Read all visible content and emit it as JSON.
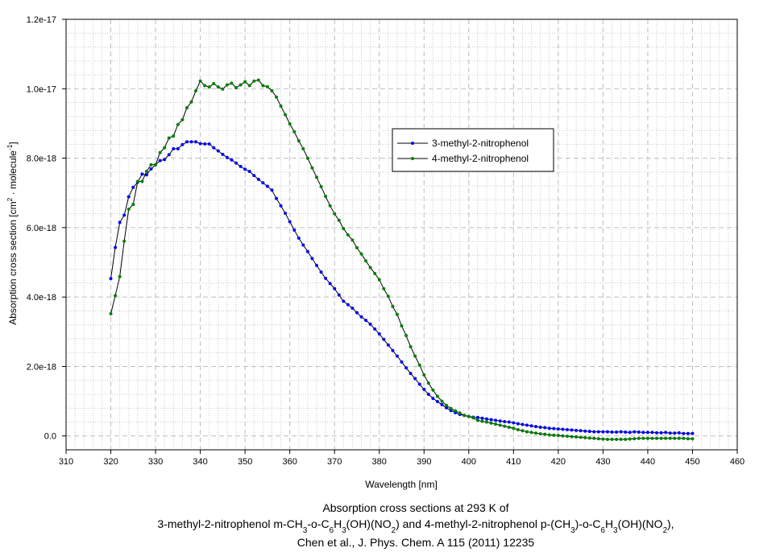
{
  "chart_data": {
    "type": "line",
    "title_lines": [
      "Absorption cross sections at 293 K of",
      "3-methyl-2-nitrophenol m-CH_{3}-o-C_{6}H_{3}(OH)(NO_{2}) and 4-methyl-2-nitrophenol p-(CH_{3})-o-C_{6}H_{3}(OH)(NO_{2}),",
      "Chen et al., J. Phys. Chem. A 115 (2011) 12235"
    ],
    "xlabel": "Wavelength [nm]",
    "ylabel": "Absorption cross section [cm^{2} · molecule^{-1}]",
    "xlim": [
      310,
      460
    ],
    "ylim": [
      -4e-19,
      1.2e-17
    ],
    "x_ticks": [
      310,
      320,
      330,
      340,
      350,
      360,
      370,
      380,
      390,
      400,
      410,
      420,
      430,
      440,
      450,
      460
    ],
    "y_ticks": [
      0,
      2e-18,
      4e-18,
      6e-18,
      8e-18,
      1e-17,
      1.2e-17
    ],
    "y_tick_labels": [
      "0.0",
      "2.0e-18",
      "4.0e-18",
      "6.0e-18",
      "8.0e-18",
      "1.0e-17",
      "1.2e-17"
    ],
    "grid": true,
    "legend_position": "center-right",
    "y_unit_multiplier": 1e-18,
    "x_start": 320,
    "x_step": 1,
    "series": [
      {
        "name": "3-methyl-2-nitrophenol",
        "color": "#0000ff",
        "values": [
          4.53,
          5.43,
          6.15,
          6.36,
          6.89,
          7.16,
          7.31,
          7.54,
          7.52,
          7.69,
          7.81,
          7.93,
          7.96,
          8.1,
          8.27,
          8.27,
          8.39,
          8.47,
          8.47,
          8.47,
          8.42,
          8.41,
          8.41,
          8.3,
          8.21,
          8.11,
          8.02,
          7.95,
          7.86,
          7.76,
          7.68,
          7.62,
          7.5,
          7.39,
          7.29,
          7.19,
          7.08,
          6.84,
          6.63,
          6.41,
          6.17,
          5.93,
          5.7,
          5.5,
          5.31,
          5.11,
          4.91,
          4.72,
          4.54,
          4.39,
          4.24,
          4.06,
          3.88,
          3.78,
          3.68,
          3.55,
          3.43,
          3.33,
          3.22,
          3.08,
          2.94,
          2.78,
          2.62,
          2.46,
          2.3,
          2.13,
          1.96,
          1.8,
          1.65,
          1.49,
          1.34,
          1.2,
          1.08,
          0.99,
          0.9,
          0.81,
          0.73,
          0.67,
          0.62,
          0.59,
          0.56,
          0.54,
          0.53,
          0.51,
          0.49,
          0.47,
          0.45,
          0.43,
          0.41,
          0.4,
          0.38,
          0.35,
          0.33,
          0.31,
          0.29,
          0.27,
          0.25,
          0.24,
          0.22,
          0.21,
          0.2,
          0.19,
          0.18,
          0.17,
          0.16,
          0.15,
          0.14,
          0.13,
          0.12,
          0.12,
          0.12,
          0.12,
          0.11,
          0.11,
          0.12,
          0.11,
          0.1,
          0.12,
          0.11,
          0.1,
          0.1,
          0.1,
          0.09,
          0.09,
          0.1,
          0.08,
          0.08,
          0.09,
          0.07,
          0.07,
          0.07
        ]
      },
      {
        "name": "4-methyl-2-nitrophenol",
        "color": "#008000",
        "values": [
          3.52,
          4.04,
          4.59,
          5.61,
          6.53,
          6.67,
          7.33,
          7.33,
          7.62,
          7.81,
          7.81,
          8.16,
          8.3,
          8.58,
          8.64,
          8.97,
          9.11,
          9.45,
          9.62,
          9.94,
          10.22,
          10.09,
          10.05,
          10.15,
          10.05,
          9.99,
          10.11,
          10.16,
          10.03,
          10.11,
          10.2,
          10.09,
          10.22,
          10.25,
          10.09,
          10.06,
          9.94,
          9.76,
          9.5,
          9.25,
          8.99,
          8.76,
          8.5,
          8.27,
          8.0,
          7.72,
          7.45,
          7.18,
          6.9,
          6.63,
          6.4,
          6.21,
          5.97,
          5.79,
          5.64,
          5.42,
          5.24,
          5.04,
          4.85,
          4.68,
          4.5,
          4.24,
          4.02,
          3.73,
          3.5,
          3.17,
          2.89,
          2.57,
          2.3,
          2.04,
          1.76,
          1.52,
          1.32,
          1.14,
          1.0,
          0.88,
          0.79,
          0.72,
          0.66,
          0.59,
          0.56,
          0.52,
          0.45,
          0.42,
          0.4,
          0.37,
          0.34,
          0.31,
          0.28,
          0.25,
          0.22,
          0.18,
          0.15,
          0.12,
          0.1,
          0.08,
          0.06,
          0.05,
          0.03,
          0.02,
          0.01,
          0,
          -0.01,
          -0.02,
          -0.03,
          -0.04,
          -0.05,
          -0.06,
          -0.07,
          -0.08,
          -0.09,
          -0.1,
          -0.1,
          -0.1,
          -0.1,
          -0.1,
          -0.09,
          -0.08,
          -0.07,
          -0.07,
          -0.07,
          -0.07,
          -0.07,
          -0.07,
          -0.07,
          -0.07,
          -0.07,
          -0.07,
          -0.07,
          -0.08,
          -0.08
        ]
      }
    ]
  }
}
